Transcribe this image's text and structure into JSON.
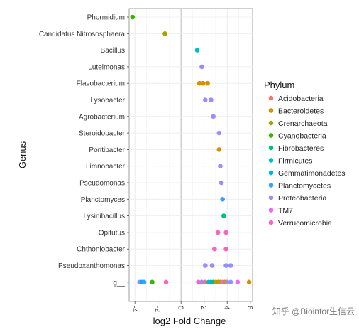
{
  "chart_data": {
    "type": "scatter",
    "xlabel": "log2 Fold Change",
    "ylabel": "Genus",
    "xlim": [
      -4.5,
      6.2
    ],
    "xticks": [
      -4,
      -2,
      0,
      2,
      4,
      6
    ],
    "xtick_labels": [
      "-4",
      "-2",
      "0",
      "2",
      "4",
      "6"
    ],
    "grid": true,
    "legend_placement": "right",
    "legend_title": "Phylum",
    "genera": [
      "Phormidium",
      "Candidatus Nitrososphaera",
      "Bacillus",
      "Luteimonas",
      "Flavobacterium",
      "Lysobacter",
      "Agrobacterium",
      "Steroidobacter",
      "Pontibacter",
      "Limnobacter",
      "Pseudomonas",
      "Planctomyces",
      "Lysinibacillus",
      "Opitutus",
      "Chthoniobacter",
      "Pseudoxanthomonas",
      "g__"
    ],
    "phyla": [
      {
        "name": "Acidobacteria",
        "color": "#F8766D"
      },
      {
        "name": "Bacteroidetes",
        "color": "#D89000"
      },
      {
        "name": "Crenarchaeota",
        "color": "#A3A500"
      },
      {
        "name": "Cyanobacteria",
        "color": "#39B600"
      },
      {
        "name": "Fibrobacteres",
        "color": "#00BF7D"
      },
      {
        "name": "Firmicutes",
        "color": "#00BFC4"
      },
      {
        "name": "Gemmatimonadetes",
        "color": "#00B0F6"
      },
      {
        "name": "Planctomycetes",
        "color": "#35A2FF"
      },
      {
        "name": "Proteobacteria",
        "color": "#9590FF"
      },
      {
        "name": "TM7",
        "color": "#E76BF3"
      },
      {
        "name": "Verrucomicrobia",
        "color": "#FF62BC"
      }
    ],
    "points": [
      {
        "genus": "Phormidium",
        "x": -4.2,
        "phylum": "Cyanobacteria"
      },
      {
        "genus": "Candidatus Nitrososphaera",
        "x": -1.4,
        "phylum": "Crenarchaeota"
      },
      {
        "genus": "Bacillus",
        "x": 1.4,
        "phylum": "Firmicutes"
      },
      {
        "genus": "Luteimonas",
        "x": 1.8,
        "phylum": "Proteobacteria"
      },
      {
        "genus": "Flavobacterium",
        "x": 1.6,
        "phylum": "Bacteroidetes"
      },
      {
        "genus": "Flavobacterium",
        "x": 1.9,
        "phylum": "Bacteroidetes"
      },
      {
        "genus": "Flavobacterium",
        "x": 2.3,
        "phylum": "Bacteroidetes"
      },
      {
        "genus": "Lysobacter",
        "x": 2.1,
        "phylum": "Proteobacteria"
      },
      {
        "genus": "Lysobacter",
        "x": 2.6,
        "phylum": "Proteobacteria"
      },
      {
        "genus": "Agrobacterium",
        "x": 2.8,
        "phylum": "Proteobacteria"
      },
      {
        "genus": "Steroidobacter",
        "x": 3.3,
        "phylum": "Proteobacteria"
      },
      {
        "genus": "Pontibacter",
        "x": 3.3,
        "phylum": "Bacteroidetes"
      },
      {
        "genus": "Limnobacter",
        "x": 3.4,
        "phylum": "Proteobacteria"
      },
      {
        "genus": "Pseudomonas",
        "x": 3.5,
        "phylum": "Proteobacteria"
      },
      {
        "genus": "Planctomyces",
        "x": 3.6,
        "phylum": "Planctomycetes"
      },
      {
        "genus": "Lysinibacillus",
        "x": 3.7,
        "phylum": "Fibrobacteres"
      },
      {
        "genus": "Opitutus",
        "x": 3.2,
        "phylum": "Verrucomicrobia"
      },
      {
        "genus": "Opitutus",
        "x": 3.9,
        "phylum": "Verrucomicrobia"
      },
      {
        "genus": "Chthoniobacter",
        "x": 2.9,
        "phylum": "Verrucomicrobia"
      },
      {
        "genus": "Chthoniobacter",
        "x": 3.9,
        "phylum": "Verrucomicrobia"
      },
      {
        "genus": "Pseudoxanthomonas",
        "x": 2.1,
        "phylum": "Proteobacteria"
      },
      {
        "genus": "Pseudoxanthomonas",
        "x": 2.7,
        "phylum": "Proteobacteria"
      },
      {
        "genus": "Pseudoxanthomonas",
        "x": 3.9,
        "phylum": "Proteobacteria"
      },
      {
        "genus": "Pseudoxanthomonas",
        "x": 4.3,
        "phylum": "Proteobacteria"
      },
      {
        "genus": "g__",
        "x": -3.6,
        "phylum": "Proteobacteria"
      },
      {
        "genus": "g__",
        "x": -3.4,
        "phylum": "Gemmatimonadetes"
      },
      {
        "genus": "g__",
        "x": -3.2,
        "phylum": "Planctomycetes"
      },
      {
        "genus": "g__",
        "x": -2.5,
        "phylum": "Cyanobacteria"
      },
      {
        "genus": "g__",
        "x": -1.3,
        "phylum": "Verrucomicrobia"
      },
      {
        "genus": "g__",
        "x": 1.5,
        "phylum": "Verrucomicrobia"
      },
      {
        "genus": "g__",
        "x": 1.8,
        "phylum": "Proteobacteria"
      },
      {
        "genus": "g__",
        "x": 2.1,
        "phylum": "Acidobacteria"
      },
      {
        "genus": "g__",
        "x": 2.4,
        "phylum": "Firmicutes"
      },
      {
        "genus": "g__",
        "x": 2.6,
        "phylum": "Gemmatimonadetes"
      },
      {
        "genus": "g__",
        "x": 2.8,
        "phylum": "Fibrobacteres"
      },
      {
        "genus": "g__",
        "x": 3.0,
        "phylum": "Bacteroidetes"
      },
      {
        "genus": "g__",
        "x": 3.2,
        "phylum": "Crenarchaeota"
      },
      {
        "genus": "g__",
        "x": 3.4,
        "phylum": "Bacteroidetes"
      },
      {
        "genus": "g__",
        "x": 3.6,
        "phylum": "TM7"
      },
      {
        "genus": "g__",
        "x": 3.8,
        "phylum": "Bacteroidetes"
      },
      {
        "genus": "g__",
        "x": 4.0,
        "phylum": "Proteobacteria"
      },
      {
        "genus": "g__",
        "x": 4.3,
        "phylum": "Proteobacteria"
      },
      {
        "genus": "g__",
        "x": 4.9,
        "phylum": "TM7"
      },
      {
        "genus": "g__",
        "x": 5.9,
        "phylum": "Bacteroidetes"
      }
    ]
  },
  "watermark": "知乎 @Bioinfor生信云"
}
